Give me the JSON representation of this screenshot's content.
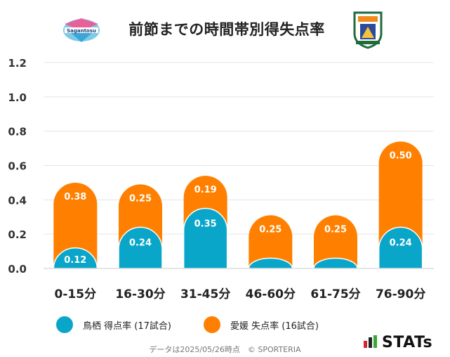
{
  "title": "前節までの時間帯別得失点率",
  "logos": {
    "left": "sagan-tosu-crest",
    "right": "ehime-fc-crest",
    "brand": "stats-logo"
  },
  "chart_data": {
    "type": "bar",
    "stacked": true,
    "categories": [
      "0-15分",
      "16-30分",
      "31-45分",
      "46-60分",
      "61-75分",
      "76-90分"
    ],
    "series": [
      {
        "name": "鳥栖 得点率 (17試合)",
        "color": "#0aa6c9",
        "values": [
          0.12,
          0.24,
          0.35,
          0.06,
          0.06,
          0.24
        ],
        "labels": [
          "0.12",
          "0.24",
          "0.35",
          "",
          "",
          "0.24"
        ]
      },
      {
        "name": "愛媛 失点率 (16試合)",
        "color": "#ff8000",
        "values": [
          0.38,
          0.25,
          0.19,
          0.25,
          0.25,
          0.5
        ],
        "labels": [
          "0.38",
          "0.25",
          "0.19",
          "0.25",
          "0.25",
          "0.50"
        ]
      }
    ],
    "ylim": [
      0,
      1.2
    ],
    "yticks": [
      "0.0",
      "0.2",
      "0.4",
      "0.6",
      "0.8",
      "1.0",
      "1.2"
    ],
    "grid": true,
    "legend": "bottom"
  },
  "footer": "データは2025/05/26時点　© SPORTERIA",
  "brand_text": "STATs"
}
